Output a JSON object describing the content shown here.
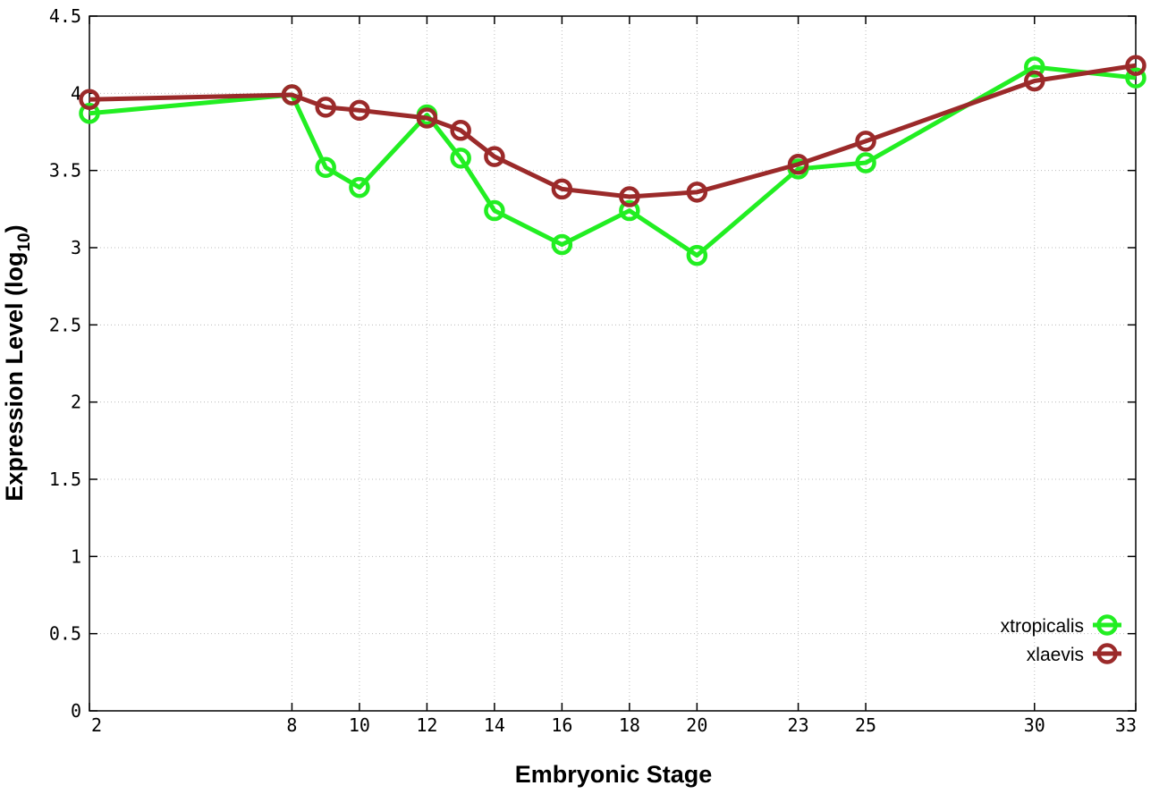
{
  "chart_data": {
    "type": "line",
    "xlabel": "Embryonic Stage",
    "ylabel": "Expression Level (log",
    "ylabel_sub": "10",
    "ylabel_end": ")",
    "x_ticks": [
      "2",
      "8",
      "10",
      "12",
      "14",
      "16",
      "18",
      "20",
      "23",
      "25",
      "30",
      "33"
    ],
    "stages": [
      "2",
      "8",
      "9",
      "10",
      "12",
      "13",
      "14",
      "16",
      "18",
      "20",
      "23",
      "25",
      "30",
      "33"
    ],
    "ylim": [
      0,
      4.5
    ],
    "y_ticks": [
      0,
      0.5,
      1,
      1.5,
      2,
      2.5,
      3,
      3.5,
      4,
      4.5
    ],
    "y_tick_labels": [
      "0",
      "0.5",
      "1",
      "1.5",
      "2",
      "2.5",
      "3",
      "3.5",
      "4",
      "4.5"
    ],
    "grid": true,
    "legend_position": "bottom-right",
    "series": [
      {
        "name": "xtropicalis",
        "color": "#22ee22",
        "values": [
          3.87,
          3.99,
          3.52,
          3.39,
          3.86,
          3.58,
          3.24,
          3.02,
          3.24,
          2.95,
          3.51,
          3.55,
          4.17,
          4.1
        ]
      },
      {
        "name": "xlaevis",
        "color": "#9b2a2a",
        "values": [
          3.96,
          3.99,
          3.91,
          3.89,
          3.84,
          3.76,
          3.59,
          3.38,
          3.33,
          3.36,
          3.54,
          3.69,
          4.08,
          4.18
        ]
      }
    ]
  }
}
